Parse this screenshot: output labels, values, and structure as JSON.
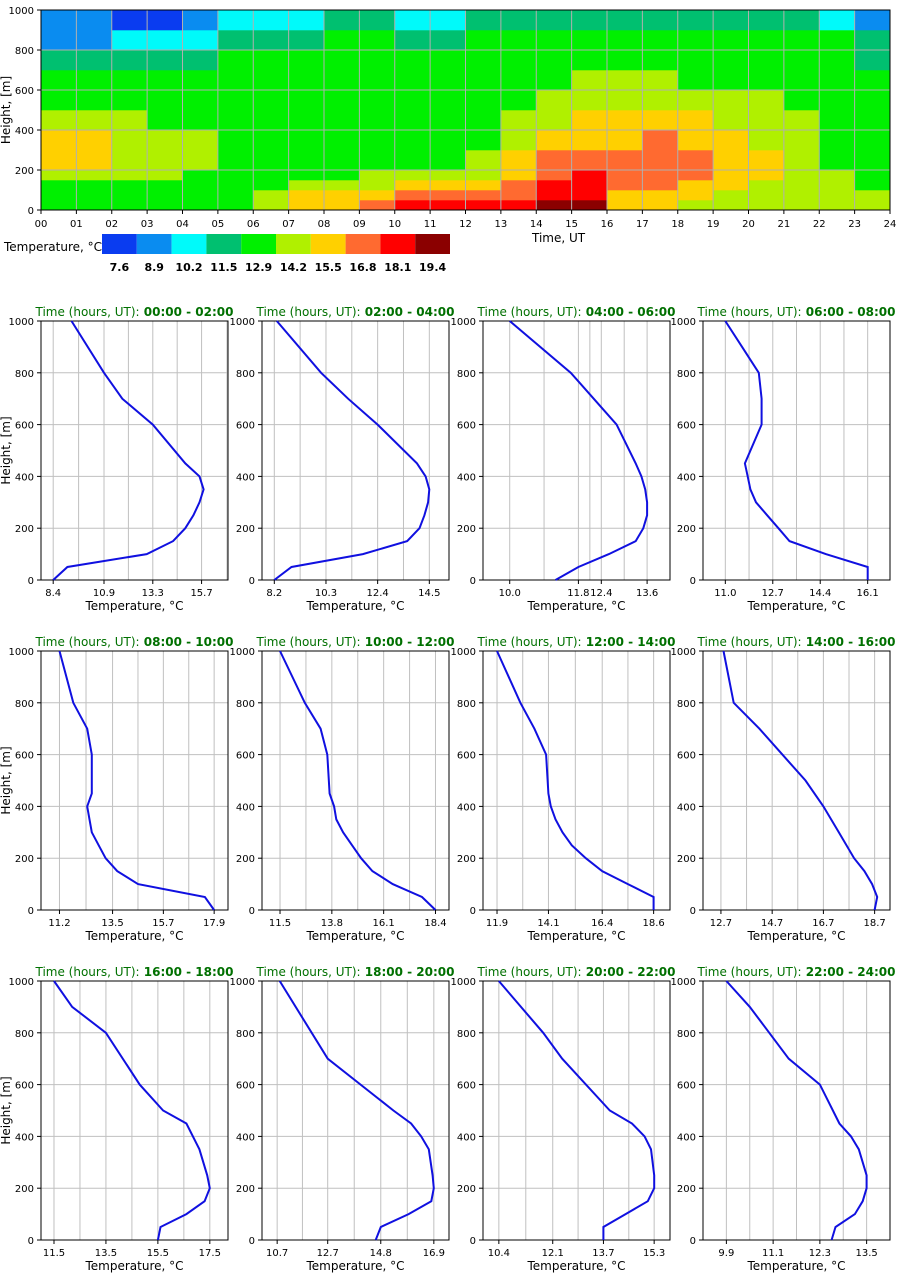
{
  "chart_data": [
    {
      "type": "heatmap",
      "xlabel": "Time, UT",
      "ylabel": "Height, [m]",
      "x_ticks": [
        "00",
        "01",
        "02",
        "03",
        "04",
        "05",
        "06",
        "07",
        "08",
        "09",
        "10",
        "11",
        "12",
        "13",
        "14",
        "15",
        "16",
        "17",
        "18",
        "19",
        "20",
        "21",
        "22",
        "23",
        "24"
      ],
      "y_ticks": [
        "0",
        "200",
        "400",
        "600",
        "800",
        "1000"
      ],
      "xlim": [
        0,
        24
      ],
      "ylim": [
        0,
        1000
      ],
      "grid": true,
      "colorbar": {
        "label": "Temperature, °C",
        "colors": [
          "#0a3cf0",
          "#0a8cf0",
          "#00fafa",
          "#00c070",
          "#00f000",
          "#b0f000",
          "#ffd000",
          "#ff6a30",
          "#ff0000",
          "#8b0000"
        ],
        "tick_labels": [
          "7.6",
          "8.9",
          "10.2",
          "11.5",
          "12.9",
          "14.2",
          "15.5",
          "16.8",
          "18.1",
          "19.4"
        ]
      },
      "rows": [
        {
          "y": [
            0,
            50
          ],
          "hours": [
            4,
            4,
            4,
            4,
            4,
            4,
            5,
            6,
            6,
            7,
            8,
            8,
            8,
            8,
            9,
            9,
            6,
            6,
            5,
            5,
            5,
            5,
            5,
            5
          ]
        },
        {
          "y": [
            50,
            100
          ],
          "hours": [
            4,
            4,
            4,
            4,
            4,
            4,
            5,
            6,
            6,
            6,
            7,
            7,
            7,
            7,
            8,
            8,
            6,
            6,
            6,
            5,
            5,
            5,
            5,
            5
          ]
        },
        {
          "y": [
            100,
            150
          ],
          "hours": [
            4,
            4,
            4,
            4,
            4,
            4,
            4,
            5,
            5,
            5,
            6,
            6,
            6,
            7,
            8,
            8,
            7,
            7,
            6,
            6,
            5,
            5,
            5,
            4
          ]
        },
        {
          "y": [
            150,
            200
          ],
          "hours": [
            5,
            5,
            5,
            5,
            4,
            4,
            4,
            4,
            4,
            5,
            5,
            5,
            5,
            6,
            7,
            8,
            7,
            7,
            7,
            6,
            6,
            5,
            5,
            4
          ]
        },
        {
          "y": [
            200,
            300
          ],
          "hours": [
            6,
            6,
            5,
            5,
            5,
            4,
            4,
            4,
            4,
            4,
            4,
            4,
            5,
            6,
            7,
            7,
            7,
            7,
            7,
            6,
            6,
            5,
            4,
            4
          ]
        },
        {
          "y": [
            300,
            400
          ],
          "hours": [
            6,
            6,
            5,
            5,
            5,
            4,
            4,
            4,
            4,
            4,
            4,
            4,
            4,
            5,
            6,
            6,
            6,
            7,
            6,
            6,
            5,
            5,
            4,
            4
          ]
        },
        {
          "y": [
            400,
            500
          ],
          "hours": [
            5,
            5,
            5,
            4,
            4,
            4,
            4,
            4,
            4,
            4,
            4,
            4,
            4,
            5,
            5,
            6,
            6,
            6,
            6,
            5,
            5,
            5,
            4,
            4
          ]
        },
        {
          "y": [
            500,
            600
          ],
          "hours": [
            4,
            4,
            4,
            4,
            4,
            4,
            4,
            4,
            4,
            4,
            4,
            4,
            4,
            4,
            5,
            5,
            5,
            5,
            5,
            5,
            5,
            4,
            4,
            4
          ]
        },
        {
          "y": [
            600,
            700
          ],
          "hours": [
            4,
            4,
            4,
            4,
            4,
            4,
            4,
            4,
            4,
            4,
            4,
            4,
            4,
            4,
            4,
            5,
            5,
            5,
            4,
            4,
            4,
            4,
            4,
            4
          ]
        },
        {
          "y": [
            700,
            800
          ],
          "hours": [
            3,
            3,
            3,
            3,
            3,
            4,
            4,
            4,
            4,
            4,
            4,
            4,
            4,
            4,
            4,
            4,
            4,
            4,
            4,
            4,
            4,
            4,
            4,
            3
          ]
        },
        {
          "y": [
            800,
            900
          ],
          "hours": [
            1,
            1,
            2,
            2,
            2,
            3,
            3,
            3,
            4,
            4,
            3,
            3,
            4,
            4,
            4,
            4,
            4,
            4,
            4,
            4,
            4,
            4,
            4,
            3
          ]
        },
        {
          "y": [
            900,
            1000
          ],
          "hours": [
            1,
            1,
            0,
            0,
            1,
            2,
            2,
            2,
            3,
            3,
            2,
            2,
            3,
            3,
            3,
            3,
            3,
            3,
            3,
            3,
            3,
            3,
            2,
            1
          ]
        }
      ]
    },
    {
      "type": "line",
      "title_prefix": "Time (hours, UT):",
      "title_range": "00:00 - 02:00",
      "xlabel": "Temperature, °C",
      "ylabel": "Height, [m]",
      "xlim": [
        7.8,
        17.0
      ],
      "ylim": [
        0,
        1000
      ],
      "x_ticks": [
        "8.4",
        "10.9",
        "13.3",
        "15.7"
      ],
      "y_ticks": [
        "0",
        "200",
        "400",
        "600",
        "800",
        "1000"
      ],
      "x": [
        8.4,
        9.1,
        13.0,
        14.3,
        14.9,
        15.3,
        15.6,
        15.8,
        15.6,
        14.9,
        13.3,
        11.8,
        10.9,
        9.3
      ],
      "y": [
        0,
        50,
        100,
        150,
        200,
        250,
        300,
        350,
        400,
        450,
        600,
        700,
        800,
        1000
      ]
    },
    {
      "type": "line",
      "title_prefix": "Time (hours, UT):",
      "title_range": "02:00 - 04:00",
      "xlabel": "Temperature, °C",
      "ylabel": "Height, [m]",
      "xlim": [
        7.7,
        15.3
      ],
      "ylim": [
        0,
        1000
      ],
      "x_ticks": [
        "8.2",
        "10.3",
        "12.4",
        "14.5"
      ],
      "y_ticks": [
        "0",
        "200",
        "400",
        "600",
        "800",
        "1000"
      ],
      "x": [
        8.2,
        8.9,
        11.8,
        13.6,
        14.1,
        14.3,
        14.45,
        14.5,
        14.35,
        14.0,
        12.4,
        11.2,
        10.1,
        8.3
      ],
      "y": [
        0,
        50,
        100,
        150,
        200,
        250,
        300,
        350,
        400,
        450,
        600,
        700,
        800,
        1000
      ]
    },
    {
      "type": "line",
      "title_prefix": "Time (hours, UT):",
      "title_range": "04:00 - 06:00",
      "xlabel": "Temperature, °C",
      "ylabel": "Height, [m]",
      "xlim": [
        9.3,
        14.2
      ],
      "ylim": [
        0,
        1000
      ],
      "x_ticks": [
        "10.0",
        "11.8",
        "12.4",
        "13.6"
      ],
      "y_ticks": [
        "0",
        "200",
        "400",
        "600",
        "800",
        "1000"
      ],
      "x": [
        11.2,
        11.8,
        12.6,
        13.3,
        13.5,
        13.6,
        13.6,
        13.55,
        13.45,
        13.3,
        12.8,
        12.2,
        11.6,
        10.0
      ],
      "y": [
        0,
        50,
        100,
        150,
        200,
        250,
        300,
        350,
        400,
        450,
        600,
        700,
        800,
        1000
      ]
    },
    {
      "type": "line",
      "title_prefix": "Time (hours, UT):",
      "title_range": "06:00 - 08:00",
      "xlabel": "Temperature, °C",
      "ylabel": "Height, [m]",
      "xlim": [
        10.2,
        16.9
      ],
      "ylim": [
        0,
        1000
      ],
      "x_ticks": [
        "11.0",
        "12.7",
        "14.4",
        "16.1"
      ],
      "y_ticks": [
        "0",
        "200",
        "400",
        "600",
        "800",
        "1000"
      ],
      "x": [
        16.1,
        16.1,
        14.6,
        13.3,
        12.9,
        12.5,
        12.1,
        11.9,
        11.8,
        11.7,
        12.3,
        12.3,
        12.2,
        11.6,
        11.0
      ],
      "y": [
        0,
        50,
        100,
        150,
        200,
        250,
        300,
        350,
        400,
        450,
        600,
        700,
        800,
        900,
        1000
      ]
    },
    {
      "type": "line",
      "title_prefix": "Time (hours, UT):",
      "title_range": "08:00 - 10:00",
      "xlabel": "Temperature, °C",
      "ylabel": "Height, [m]",
      "xlim": [
        10.4,
        18.5
      ],
      "ylim": [
        0,
        1000
      ],
      "x_ticks": [
        "11.2",
        "13.5",
        "15.7",
        "17.9"
      ],
      "y_ticks": [
        "0",
        "200",
        "400",
        "600",
        "800",
        "1000"
      ],
      "x": [
        17.9,
        17.5,
        14.6,
        13.7,
        13.2,
        12.9,
        12.6,
        12.5,
        12.4,
        12.6,
        12.6,
        12.4,
        11.8,
        11.2
      ],
      "y": [
        0,
        50,
        100,
        150,
        200,
        250,
        300,
        350,
        400,
        450,
        600,
        700,
        800,
        1000
      ]
    },
    {
      "type": "line",
      "title_prefix": "Time (hours, UT):",
      "title_range": "10:00 - 12:00",
      "xlabel": "Temperature, °C",
      "ylabel": "Height, [m]",
      "xlim": [
        10.7,
        19.0
      ],
      "ylim": [
        0,
        1000
      ],
      "x_ticks": [
        "11.5",
        "13.8",
        "16.1",
        "18.4"
      ],
      "y_ticks": [
        "0",
        "200",
        "400",
        "600",
        "800",
        "1000"
      ],
      "x": [
        18.4,
        17.8,
        16.5,
        15.6,
        15.1,
        14.7,
        14.3,
        14.0,
        13.9,
        13.7,
        13.6,
        13.3,
        12.6,
        11.5
      ],
      "y": [
        0,
        50,
        100,
        150,
        200,
        250,
        300,
        350,
        400,
        450,
        600,
        700,
        800,
        1000
      ]
    },
    {
      "type": "line",
      "title_prefix": "Time (hours, UT):",
      "title_range": "12:00 - 14:00",
      "xlabel": "Temperature, °C",
      "ylabel": "Height, [m]",
      "xlim": [
        11.3,
        19.3
      ],
      "ylim": [
        0,
        1000
      ],
      "x_ticks": [
        "11.9",
        "14.1",
        "16.4",
        "18.6"
      ],
      "y_ticks": [
        "0",
        "200",
        "400",
        "600",
        "800",
        "1000"
      ],
      "x": [
        18.6,
        18.6,
        17.5,
        16.4,
        15.7,
        15.1,
        14.7,
        14.4,
        14.2,
        14.1,
        14.0,
        13.5,
        12.9,
        11.9
      ],
      "y": [
        0,
        50,
        100,
        150,
        200,
        250,
        300,
        350,
        400,
        450,
        600,
        700,
        800,
        1000
      ]
    },
    {
      "type": "line",
      "title_prefix": "Time (hours, UT):",
      "title_range": "14:00 - 16:00",
      "xlabel": "Temperature, °C",
      "ylabel": "Height, [m]",
      "xlim": [
        12.0,
        19.3
      ],
      "ylim": [
        0,
        1000
      ],
      "x_ticks": [
        "12.7",
        "14.7",
        "16.7",
        "18.7"
      ],
      "y_ticks": [
        "0",
        "200",
        "400",
        "600",
        "800",
        "1000"
      ],
      "x": [
        18.7,
        18.8,
        18.6,
        18.3,
        17.9,
        17.3,
        16.7,
        16.0,
        15.1,
        14.2,
        13.2,
        12.8
      ],
      "y": [
        0,
        50,
        100,
        150,
        200,
        300,
        400,
        500,
        600,
        700,
        800,
        1000
      ]
    },
    {
      "type": "line",
      "title_prefix": "Time (hours, UT):",
      "title_range": "16:00 - 18:00",
      "xlabel": "Temperature, °C",
      "ylabel": "Height, [m]",
      "xlim": [
        11.0,
        18.2
      ],
      "ylim": [
        0,
        1000
      ],
      "x_ticks": [
        "11.5",
        "13.5",
        "15.5",
        "17.5"
      ],
      "y_ticks": [
        "0",
        "200",
        "400",
        "600",
        "800",
        "1000"
      ],
      "x": [
        15.5,
        15.6,
        16.6,
        17.3,
        17.5,
        17.4,
        17.1,
        16.6,
        15.7,
        14.8,
        13.5,
        12.2,
        11.5
      ],
      "y": [
        0,
        50,
        100,
        150,
        200,
        250,
        350,
        450,
        500,
        600,
        800,
        900,
        1000
      ]
    },
    {
      "type": "line",
      "title_prefix": "Time (hours, UT):",
      "title_range": "18:00 - 20:00",
      "xlabel": "Temperature, °C",
      "ylabel": "Height, [m]",
      "xlim": [
        10.1,
        17.5
      ],
      "ylim": [
        0,
        1000
      ],
      "x_ticks": [
        "10.7",
        "12.7",
        "14.8",
        "16.9"
      ],
      "y_ticks": [
        "0",
        "200",
        "400",
        "600",
        "800",
        "1000"
      ],
      "x": [
        14.6,
        14.8,
        15.9,
        16.8,
        16.9,
        16.85,
        16.7,
        16.4,
        16.0,
        15.3,
        14.0,
        12.7,
        10.8
      ],
      "y": [
        0,
        50,
        100,
        150,
        200,
        250,
        350,
        400,
        450,
        500,
        600,
        700,
        1000
      ]
    },
    {
      "type": "line",
      "title_prefix": "Time (hours, UT):",
      "title_range": "20:00 - 22:00",
      "xlabel": "Temperature, °C",
      "ylabel": "Height, [m]",
      "xlim": [
        9.9,
        15.8
      ],
      "ylim": [
        0,
        1000
      ],
      "x_ticks": [
        "10.4",
        "12.1",
        "13.7",
        "15.3"
      ],
      "y_ticks": [
        "0",
        "200",
        "400",
        "600",
        "800",
        "1000"
      ],
      "x": [
        13.7,
        13.7,
        14.4,
        15.1,
        15.3,
        15.3,
        15.2,
        15.0,
        14.6,
        13.9,
        12.4,
        11.8,
        10.4
      ],
      "y": [
        0,
        50,
        100,
        150,
        200,
        250,
        350,
        400,
        450,
        500,
        700,
        800,
        1000
      ]
    },
    {
      "type": "line",
      "title_prefix": "Time (hours, UT):",
      "title_range": "22:00 - 24:00",
      "xlabel": "Temperature, °C",
      "ylabel": "Height, [m]",
      "xlim": [
        9.3,
        14.1
      ],
      "ylim": [
        0,
        1000
      ],
      "x_ticks": [
        "9.9",
        "11.1",
        "12.3",
        "13.5"
      ],
      "y_ticks": [
        "0",
        "200",
        "400",
        "600",
        "800",
        "1000"
      ],
      "x": [
        12.6,
        12.7,
        13.2,
        13.4,
        13.5,
        13.5,
        13.4,
        13.3,
        13.1,
        12.8,
        12.3,
        11.5,
        10.5,
        9.9
      ],
      "y": [
        0,
        50,
        100,
        150,
        200,
        250,
        300,
        350,
        400,
        450,
        600,
        700,
        900,
        1000
      ]
    }
  ]
}
